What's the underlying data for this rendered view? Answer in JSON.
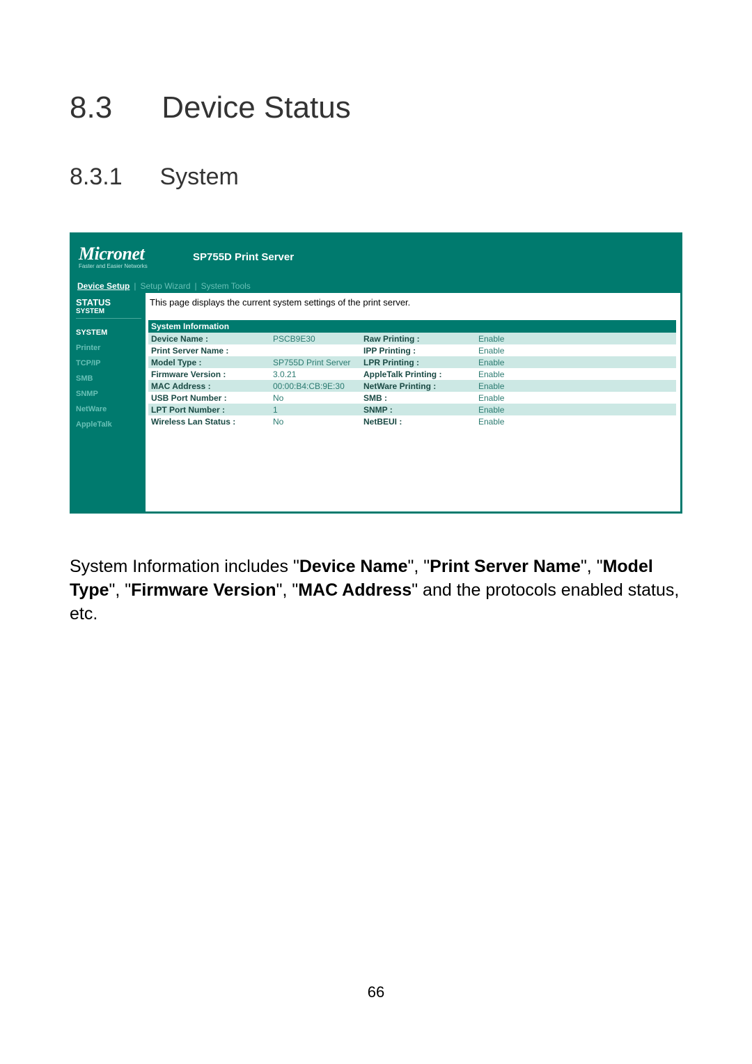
{
  "headings": {
    "main_num": "8.3",
    "main_text": "Device Status",
    "sub_num": "8.3.1",
    "sub_text": "System"
  },
  "header": {
    "logo": "Micronet",
    "logo_tagline": "Faster and Easier Networks",
    "title": "SP755D Print Server"
  },
  "tabs": {
    "items": [
      "Device Setup",
      "Setup Wizard",
      "System Tools"
    ],
    "active_index": 0,
    "separator": "|"
  },
  "sidebar": {
    "status_label": "STATUS",
    "status_sub": "SYSTEM",
    "items": [
      "SYSTEM",
      "Printer",
      "TCP/IP",
      "SMB",
      "SNMP",
      "NetWare",
      "AppleTalk"
    ],
    "active_index": 0
  },
  "content": {
    "description": "This page displays the current system settings of the print server.",
    "section_title": "System Information",
    "rows": [
      {
        "l": "Device Name :",
        "v": "PSCB9E30",
        "l2": "Raw Printing :",
        "v2": "Enable"
      },
      {
        "l": "Print Server Name :",
        "v": "",
        "l2": "IPP Printing :",
        "v2": "Enable"
      },
      {
        "l": "Model Type :",
        "v": "SP755D Print Server",
        "l2": "LPR Printing :",
        "v2": "Enable"
      },
      {
        "l": "Firmware Version :",
        "v": "3.0.21",
        "l2": "AppleTalk Printing :",
        "v2": "Enable"
      },
      {
        "l": "MAC Address :",
        "v": "00:00:B4:CB:9E:30",
        "l2": "NetWare Printing :",
        "v2": "Enable"
      },
      {
        "l": "USB Port Number :",
        "v": "No",
        "l2": "SMB :",
        "v2": "Enable"
      },
      {
        "l": "LPT Port Number :",
        "v": "1",
        "l2": "SNMP :",
        "v2": "Enable"
      },
      {
        "l": "Wireless Lan Status :",
        "v": "No",
        "l2": "NetBEUI :",
        "v2": "Enable"
      }
    ]
  },
  "body_paragraph": {
    "prefix": "System Information includes \"",
    "b1": "Device Name",
    "s1": "\", \"",
    "b2": "Print Server Name",
    "s2": "\", \"",
    "b3": "Model Type",
    "s3": "\", \"",
    "b4": "Firmware Version",
    "s4": "\", \"",
    "b5": "MAC Address",
    "suffix": "\" and the protocols enabled status, etc."
  },
  "page_number": "66",
  "colors": {
    "primary": "#007a6e",
    "row_odd": "#cce8e4",
    "row_even": "#ffffff",
    "sidebar_dim": "#68c0b6"
  }
}
